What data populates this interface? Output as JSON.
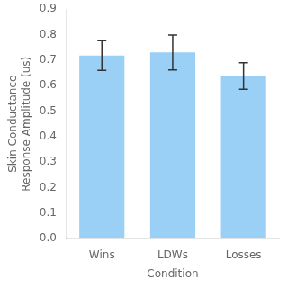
{
  "chart_data": {
    "type": "bar",
    "categories": [
      "Wins",
      "LDWs",
      "Losses"
    ],
    "values": [
      0.718,
      0.73,
      0.638
    ],
    "errors": [
      0.058,
      0.068,
      0.052
    ],
    "xlabel": "Condition",
    "ylabel": "Skin Conductance\nResponse Amplitude (us)",
    "ylim": [
      0,
      0.9
    ],
    "yticks": [
      {
        "value": 0,
        "label": "0.0"
      },
      0.1,
      0.2,
      0.3,
      0.4,
      0.5,
      0.6,
      0.7,
      0.8,
      0.9
    ],
    "grid": false
  }
}
